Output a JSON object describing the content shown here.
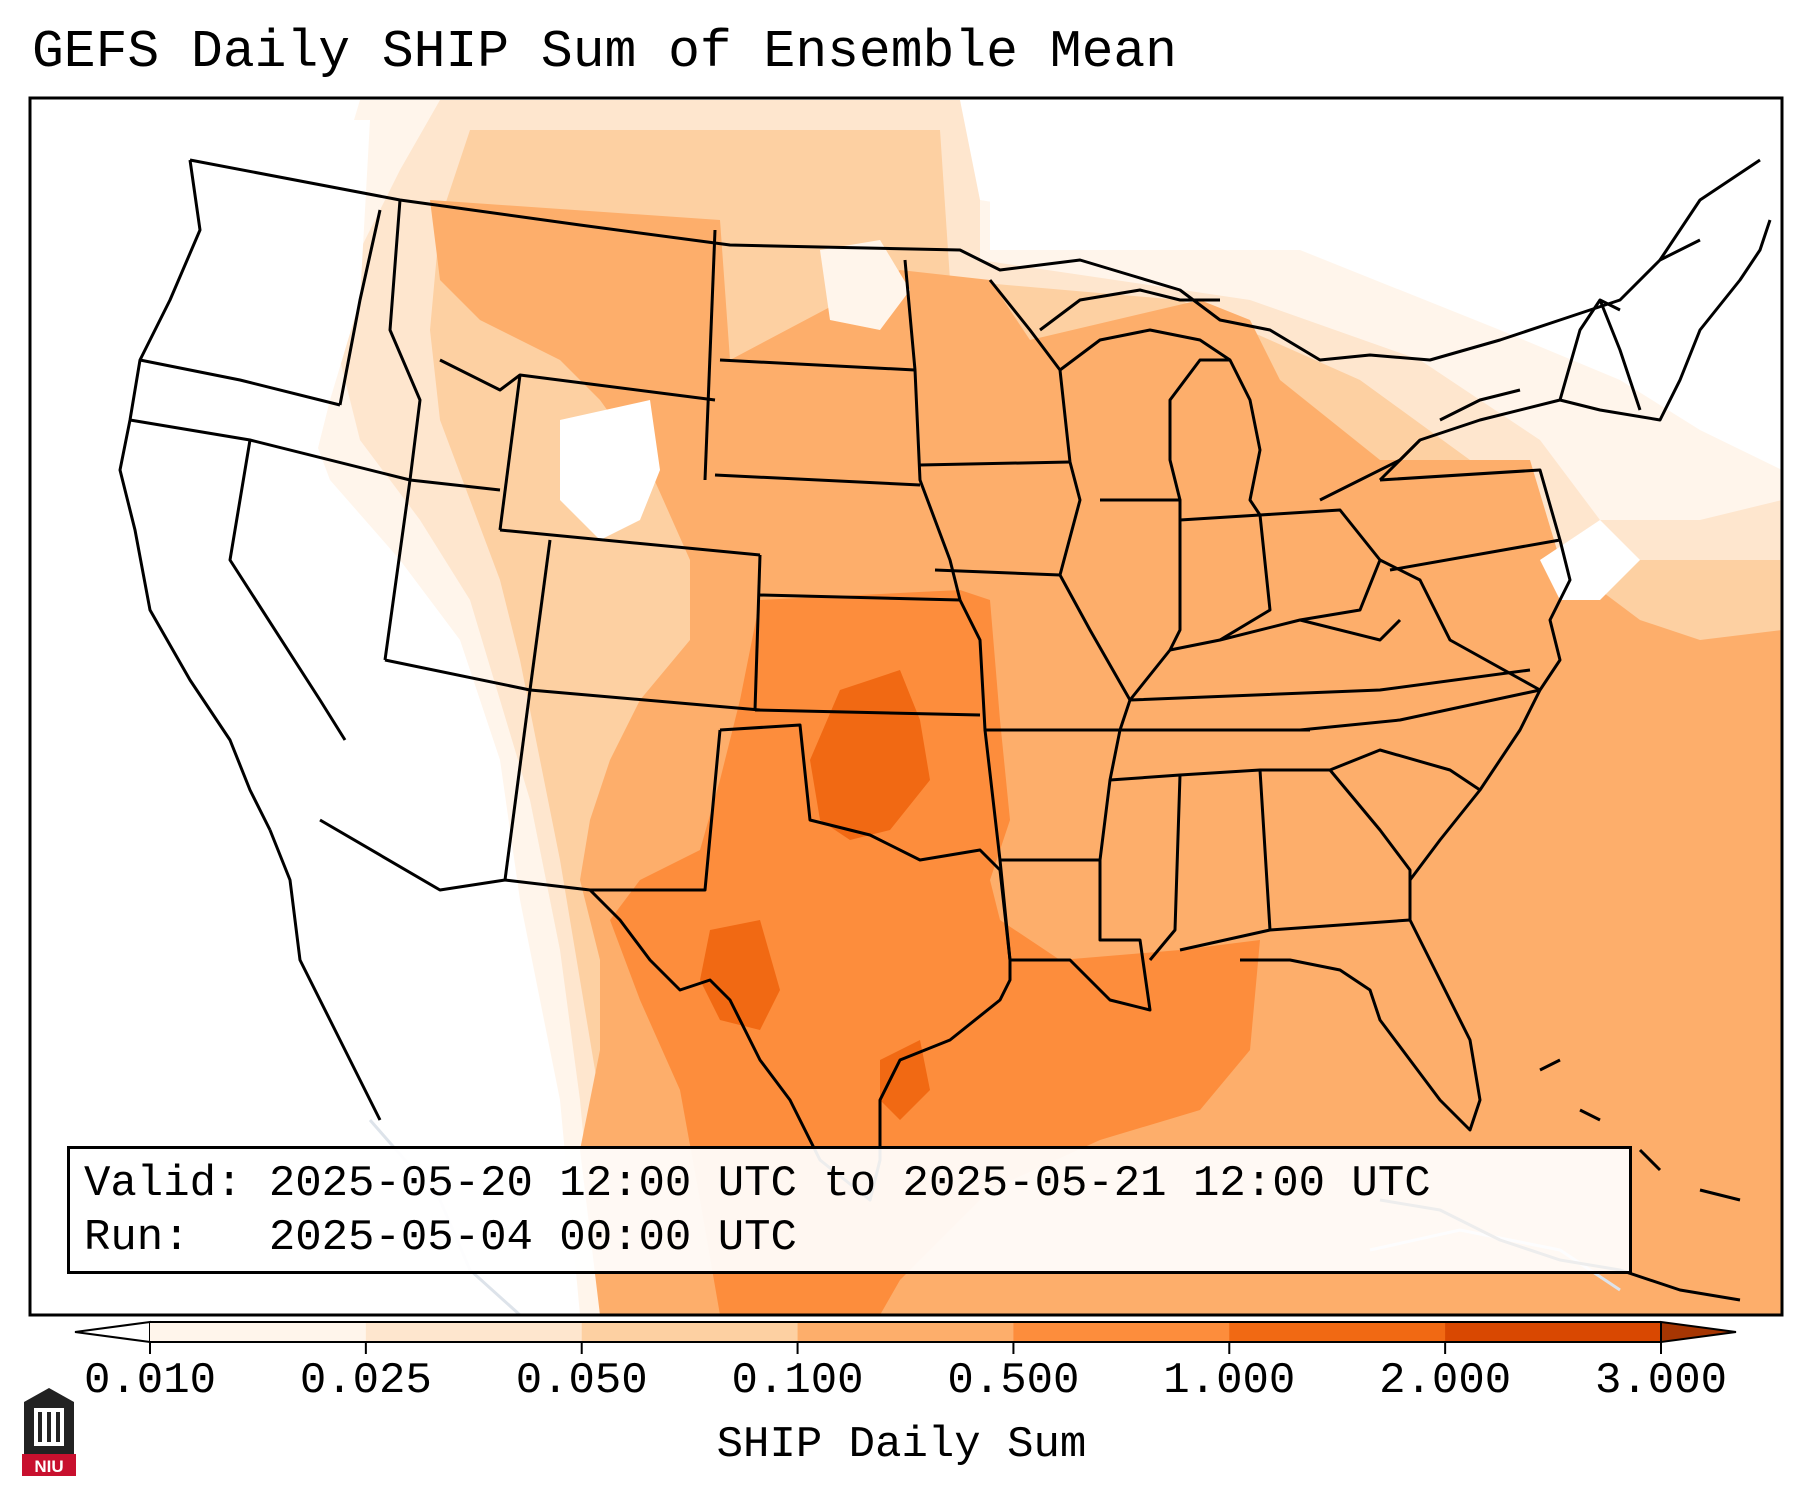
{
  "title": "GEFS Daily SHIP Sum of Ensemble Mean",
  "info": {
    "valid_label": "Valid:",
    "valid_value": "2025-05-20 12:00 UTC to 2025-05-21 12:00 UTC",
    "run_label": "Run:",
    "run_value": "2025-05-04 00:00 UTC"
  },
  "colorbar": {
    "label": "SHIP Daily Sum",
    "ticks": [
      "0.010",
      "0.025",
      "0.050",
      "0.100",
      "0.500",
      "1.000",
      "2.000",
      "3.000"
    ],
    "colors": [
      "#fff5eb",
      "#fee6ce",
      "#fdd0a2",
      "#fdae6b",
      "#fd8d3c",
      "#f16913",
      "#d94801",
      "#a63603"
    ],
    "extend": "both"
  },
  "logo": {
    "text": "NIU",
    "color": "#c8102e"
  }
}
